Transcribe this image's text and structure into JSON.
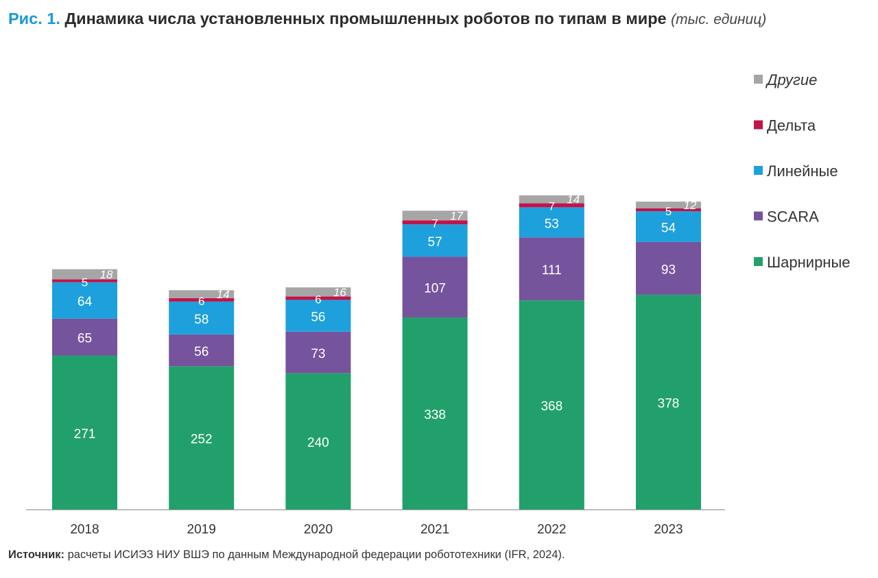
{
  "title": {
    "fig_label": "Рис. 1.",
    "text": "Динамика числа установленных промышленных роботов по типам в мире",
    "unit": "(тыс. единиц)"
  },
  "source": {
    "label": "Источник:",
    "text": "расчеты ИСИЭЗ НИУ ВШЭ по данным Международной федерации робототехники (IFR, 2024)."
  },
  "colors": {
    "title_accent": "#1a9ad6",
    "series": {
      "Шарнирные": "#22a06b",
      "SCARA": "#76539d",
      "Линейные": "#1ea0dc",
      "Дельта": "#c0144a",
      "Другие": "#a6a6a6"
    }
  },
  "chart_data": {
    "type": "bar",
    "stacked": true,
    "categories": [
      "2018",
      "2019",
      "2020",
      "2021",
      "2022",
      "2023"
    ],
    "series": [
      {
        "name": "Шарнирные",
        "values": [
          271,
          252,
          240,
          338,
          368,
          378
        ]
      },
      {
        "name": "SCARA",
        "values": [
          65,
          56,
          73,
          107,
          111,
          93
        ]
      },
      {
        "name": "Линейные",
        "values": [
          64,
          58,
          56,
          57,
          53,
          54
        ]
      },
      {
        "name": "Дельта",
        "values": [
          5,
          6,
          6,
          7,
          7,
          5
        ]
      },
      {
        "name": "Другие",
        "values": [
          18,
          14,
          16,
          17,
          14,
          12
        ]
      }
    ],
    "legend_order": [
      "Другие",
      "Дельта",
      "Линейные",
      "SCARA",
      "Шарнирные"
    ],
    "legend_position": "right",
    "grid": false,
    "ylim": [
      0,
      550
    ]
  }
}
